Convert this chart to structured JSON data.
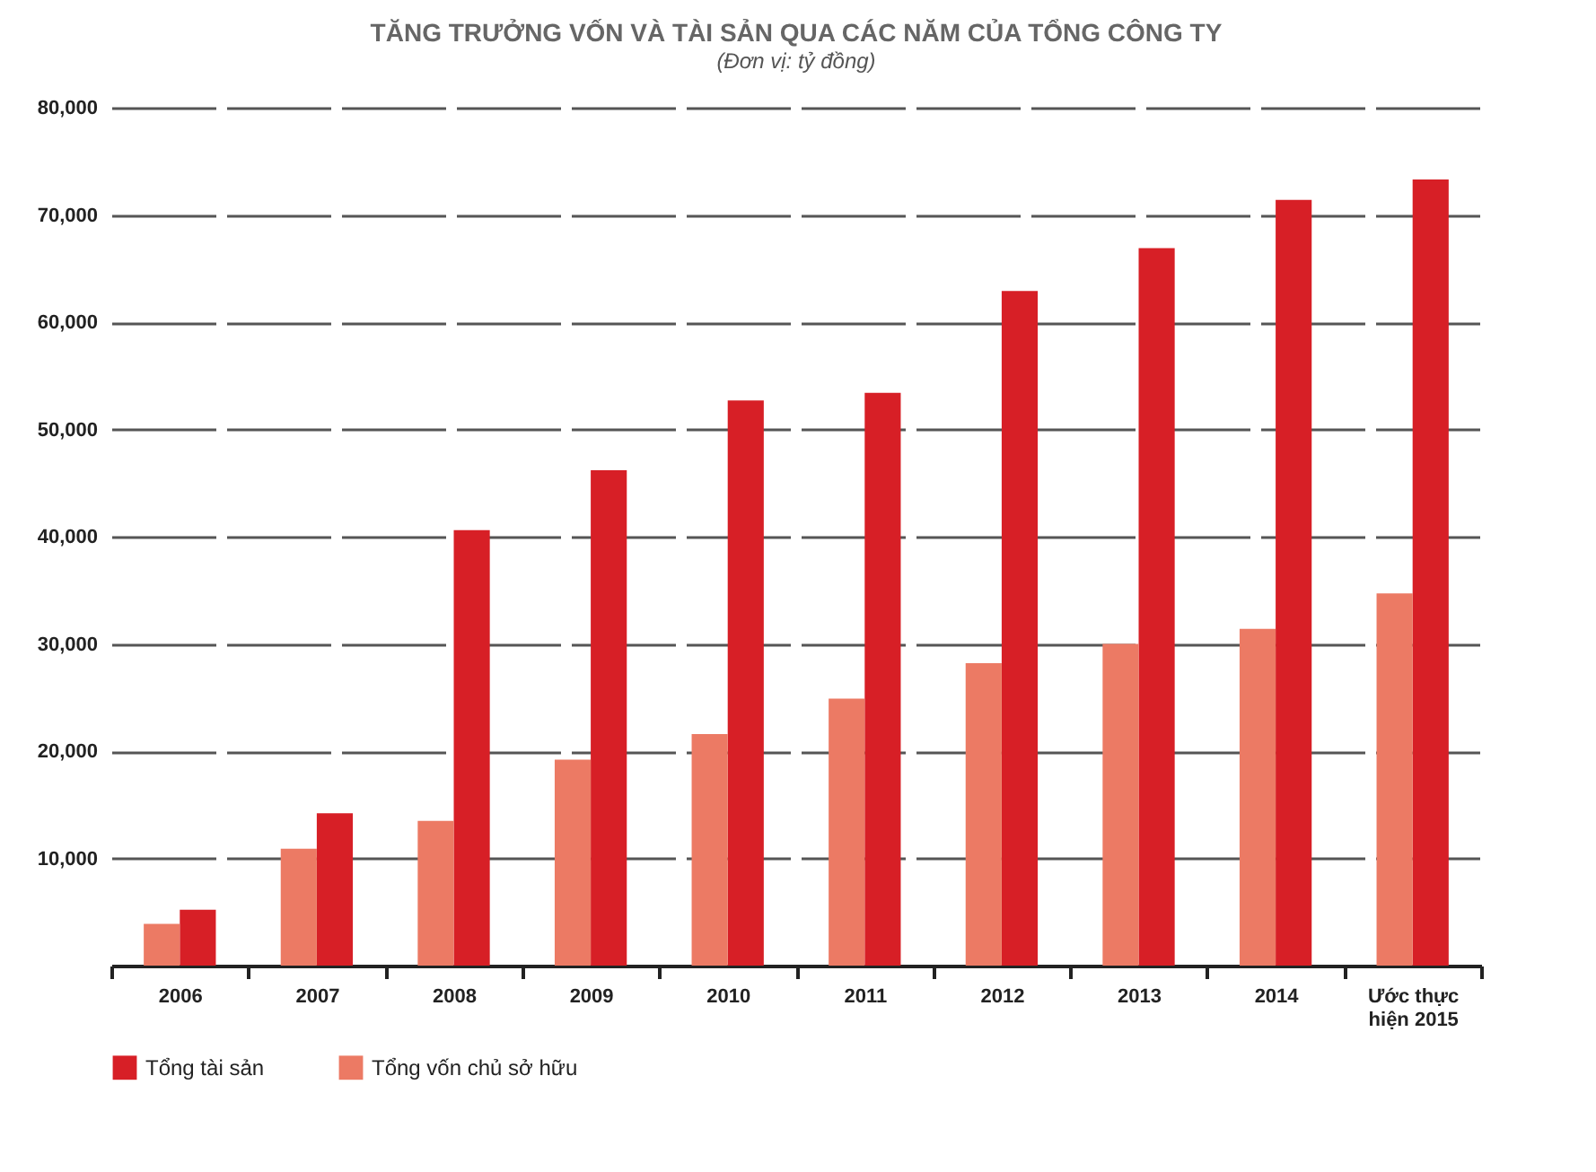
{
  "chart_data": {
    "type": "bar",
    "title": "TĂNG TRƯỞNG VỐN VÀ TÀI SẢN QUA CÁC NĂM CỦA TỔNG CÔNG TY",
    "subtitle": "(Đơn vị: tỷ đồng)",
    "categories": [
      "2006",
      "2007",
      "2008",
      "2009",
      "2010",
      "2011",
      "2012",
      "2013",
      "2014",
      "Ước thực hiện 2015"
    ],
    "series": [
      {
        "name": "Tổng tài sản",
        "color": "#d71f26",
        "values": [
          5200,
          14200,
          40600,
          46200,
          52700,
          53400,
          62900,
          66900,
          71400,
          73300
        ]
      },
      {
        "name": "Tổng vốn chủ sở hữu",
        "color": "#ec7a64",
        "values": [
          3900,
          10900,
          13500,
          19200,
          21600,
          24900,
          28200,
          30000,
          31400,
          34700
        ]
      }
    ],
    "ylim": [
      0,
      80000
    ],
    "yticks": [
      {
        "value": 10000,
        "label": "10,000"
      },
      {
        "value": 20000,
        "label": "20,000"
      },
      {
        "value": 30000,
        "label": "30,000"
      },
      {
        "value": 40000,
        "label": "40,000"
      },
      {
        "value": 50000,
        "label": "50,000"
      },
      {
        "value": 60000,
        "label": "60,000"
      },
      {
        "value": 70000,
        "label": "70,000"
      },
      {
        "value": 80000,
        "label": "80,000"
      }
    ],
    "grid": "y",
    "legend": "bottom"
  }
}
